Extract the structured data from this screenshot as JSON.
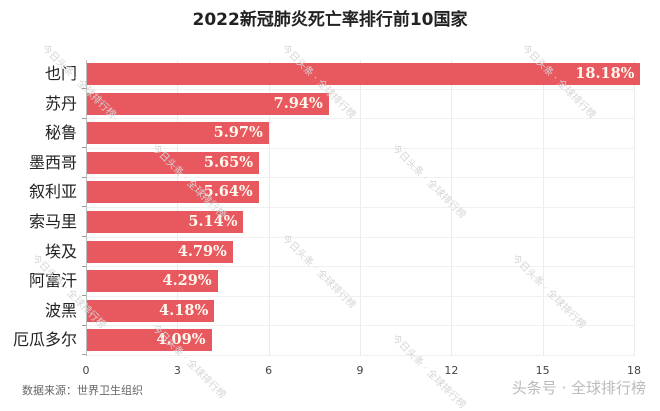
{
  "title": "2022新冠肺炎死亡率排行前10国家",
  "source": "数据来源：世界卫生组织",
  "watermark": "今日头条 · 全球排行榜",
  "brand": "头条号 · 全球排行榜",
  "colors": {
    "bar": "#e8585f",
    "label": "#fff8ee"
  },
  "chart_data": {
    "type": "bar",
    "orientation": "horizontal",
    "title": "2022新冠肺炎死亡率排行前10国家",
    "categories": [
      "也门",
      "苏丹",
      "秘鲁",
      "墨西哥",
      "叙利亚",
      "索马里",
      "埃及",
      "阿富汗",
      "波黑",
      "厄瓜多尔"
    ],
    "values": [
      18.18,
      7.94,
      5.97,
      5.65,
      5.64,
      5.14,
      4.79,
      4.29,
      4.18,
      4.09
    ],
    "value_labels": [
      "18.18%",
      "7.94%",
      "5.97%",
      "5.65%",
      "5.64%",
      "5.14%",
      "4.79%",
      "4.29%",
      "4.18%",
      "4.09%"
    ],
    "xlabel": "",
    "ylabel": "",
    "xlim": [
      0,
      18
    ],
    "xticks": [
      "0",
      "3",
      "6",
      "9",
      "12",
      "15",
      "18"
    ],
    "grid": true,
    "legend": null,
    "annotation": "数据来源：世界卫生组织"
  }
}
